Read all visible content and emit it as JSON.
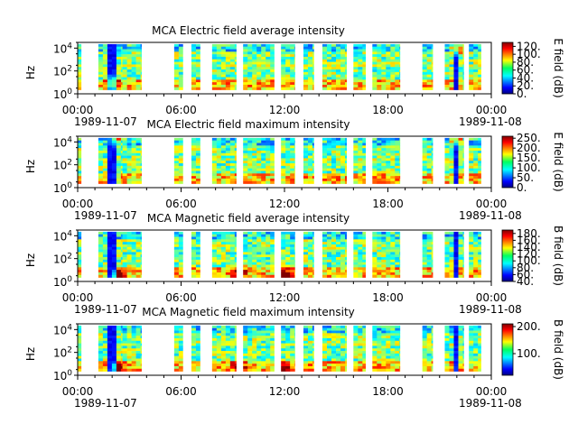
{
  "figure": {
    "x_tick_labels": [
      "00:00",
      "06:00",
      "12:00",
      "18:00",
      "00:00"
    ],
    "date_start": "1989-11-07",
    "date_end": "1989-11-08",
    "y_axis_label": "Hz",
    "y_tick_base": "10",
    "y_tick_exponents": [
      "0",
      "2",
      "4"
    ]
  },
  "chart_data": [
    {
      "type": "heatmap",
      "title": "MCA  Electric field average intensity",
      "ylabel": "Hz",
      "colorbar_label": "E field (dB)",
      "colorbar_range": [
        0,
        130
      ],
      "colorbar_ticks": [
        "0.",
        "20.",
        "40.",
        "60.",
        "80.",
        "100.",
        "120."
      ],
      "colorbar_values": [
        0,
        20,
        40,
        60,
        80,
        100,
        120
      ],
      "x_range_hours": [
        0,
        24
      ],
      "y_range_log10": [
        0,
        4.5
      ],
      "segments_hours": [
        [
          0,
          0.2
        ],
        [
          1.2,
          2.6
        ],
        [
          2.6,
          3.7
        ],
        [
          5.6,
          6.1
        ],
        [
          6.6,
          7.1
        ],
        [
          7.8,
          9.2
        ],
        [
          9.6,
          11.4
        ],
        [
          11.8,
          12.6
        ],
        [
          13.1,
          13.7
        ],
        [
          14.2,
          15.6
        ],
        [
          16.0,
          16.7
        ],
        [
          17.1,
          18.7
        ],
        [
          20.0,
          20.6
        ],
        [
          21.3,
          22.4
        ],
        [
          22.7,
          23.4
        ]
      ],
      "dark_stripes_hours": [
        2.0,
        22.0
      ],
      "hot_spots": [
        [
          2.0,
          0.9
        ],
        [
          22.0,
          4.0
        ]
      ]
    },
    {
      "type": "heatmap",
      "title": "MCA  Electric field maximum intensity",
      "ylabel": "Hz",
      "colorbar_label": "E field (dB)",
      "colorbar_range": [
        0,
        260
      ],
      "colorbar_ticks": [
        "0.",
        "50.",
        "100.",
        "150.",
        "200.",
        "250."
      ],
      "colorbar_values": [
        0,
        50,
        100,
        150,
        200,
        250
      ],
      "x_range_hours": [
        0,
        24
      ],
      "y_range_log10": [
        0,
        4.5
      ],
      "segments_hours": [
        [
          0,
          0.2
        ],
        [
          1.2,
          2.6
        ],
        [
          2.6,
          3.7
        ],
        [
          5.6,
          6.1
        ],
        [
          6.6,
          7.1
        ],
        [
          7.8,
          9.2
        ],
        [
          9.6,
          11.4
        ],
        [
          11.8,
          12.6
        ],
        [
          13.1,
          13.7
        ],
        [
          14.2,
          15.6
        ],
        [
          16.0,
          16.7
        ],
        [
          17.1,
          18.7
        ],
        [
          20.0,
          20.6
        ],
        [
          21.3,
          22.4
        ],
        [
          22.7,
          23.4
        ]
      ],
      "dark_stripes_hours": [
        2.0,
        22.0
      ],
      "hot_spots": [
        [
          2.2,
          4.3
        ],
        [
          22.0,
          4.3
        ]
      ]
    },
    {
      "type": "heatmap",
      "title": "MCA  Magnetic field average intensity",
      "ylabel": "Hz",
      "colorbar_label": "B field (dB)",
      "colorbar_range": [
        40,
        190
      ],
      "colorbar_ticks": [
        "40.",
        "60.",
        "80.",
        "100.",
        "120.",
        "140.",
        "160.",
        "180."
      ],
      "colorbar_values": [
        40,
        60,
        80,
        100,
        120,
        140,
        160,
        180
      ],
      "x_range_hours": [
        0,
        24
      ],
      "y_range_log10": [
        0,
        4.5
      ],
      "segments_hours": [
        [
          0,
          0.2
        ],
        [
          1.2,
          2.6
        ],
        [
          2.6,
          3.7
        ],
        [
          5.6,
          6.1
        ],
        [
          6.6,
          7.1
        ],
        [
          7.8,
          9.2
        ],
        [
          9.6,
          11.4
        ],
        [
          11.8,
          12.6
        ],
        [
          13.1,
          13.7
        ],
        [
          14.2,
          15.6
        ],
        [
          16.0,
          16.7
        ],
        [
          17.1,
          18.7
        ],
        [
          20.0,
          20.6
        ],
        [
          21.3,
          22.4
        ],
        [
          22.7,
          23.4
        ]
      ],
      "dark_stripes_hours": [
        2.0,
        22.0
      ],
      "hot_spots": [
        [
          2.4,
          0.5
        ],
        [
          9.4,
          0.8
        ],
        [
          12.1,
          0.5
        ]
      ]
    },
    {
      "type": "heatmap",
      "title": "MCA  Magnetic field maximum intensity",
      "ylabel": "Hz",
      "colorbar_label": "B field (dB)",
      "colorbar_range": [
        20,
        210
      ],
      "colorbar_ticks": [
        "100.",
        "200."
      ],
      "colorbar_values": [
        100,
        200
      ],
      "x_range_hours": [
        0,
        24
      ],
      "y_range_log10": [
        0,
        4.5
      ],
      "segments_hours": [
        [
          0,
          0.2
        ],
        [
          1.2,
          2.6
        ],
        [
          2.6,
          3.7
        ],
        [
          5.6,
          6.1
        ],
        [
          6.6,
          7.1
        ],
        [
          7.8,
          9.2
        ],
        [
          9.6,
          11.4
        ],
        [
          11.8,
          12.6
        ],
        [
          13.1,
          13.7
        ],
        [
          14.2,
          15.6
        ],
        [
          16.0,
          16.7
        ],
        [
          17.1,
          18.7
        ],
        [
          20.0,
          20.6
        ],
        [
          21.3,
          22.4
        ],
        [
          22.7,
          23.4
        ]
      ],
      "dark_stripes_hours": [
        2.0,
        22.0
      ],
      "hot_spots": [
        [
          2.4,
          0.6
        ],
        [
          9.4,
          0.8
        ],
        [
          12.1,
          0.5
        ]
      ]
    }
  ]
}
